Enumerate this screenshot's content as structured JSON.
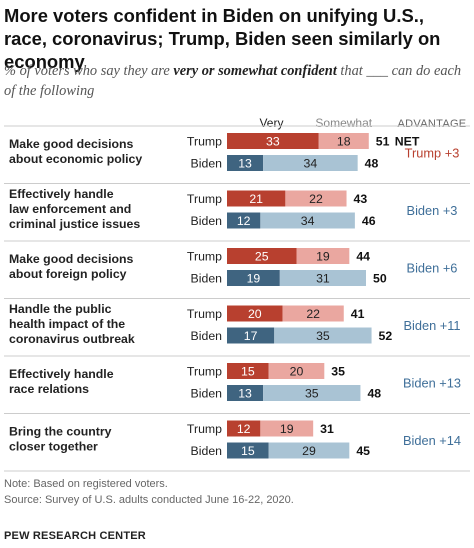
{
  "title": "More voters confident in Biden on unifying U.S., race, coronavirus; Trump, Biden seen similarly on economy",
  "subtitle": {
    "before": "% of voters who say they are ",
    "emphasis": "very or somewhat confident",
    "after": " that ___ can do each of the following"
  },
  "notes": {
    "note": "Note: Based on registered voters.",
    "source": "Source: Survey of U.S. adults conducted June 16-22, 2020.",
    "brand": "PEW RESEARCH CENTER"
  },
  "chart_data": {
    "type": "bar",
    "stacked": true,
    "orientation": "horizontal",
    "legend": [
      "Very",
      "Somewhat"
    ],
    "advantage_header": "ADVANTAGE",
    "net_label": "NET",
    "colors": {
      "trump_very": "#b8402f",
      "trump_somewhat": "#eaa7a0",
      "biden_very": "#3f6480",
      "biden_somewhat": "#a9c3d4",
      "trump_adv": "#b8402f",
      "biden_adv": "#3f6f99",
      "separator": "#cccccc"
    },
    "categories": [
      {
        "label": [
          "Make good decisions",
          "about economic policy"
        ],
        "rows": [
          {
            "name": "Trump",
            "very": 33,
            "somewhat": 18,
            "net": 51
          },
          {
            "name": "Biden",
            "very": 13,
            "somewhat": 34,
            "net": 48
          }
        ],
        "advantage": {
          "text": "Trump +3",
          "side": "trump"
        }
      },
      {
        "label": [
          "Effectively handle",
          "law enforcement and",
          "criminal justice issues"
        ],
        "rows": [
          {
            "name": "Trump",
            "very": 21,
            "somewhat": 22,
            "net": 43
          },
          {
            "name": "Biden",
            "very": 12,
            "somewhat": 34,
            "net": 46
          }
        ],
        "advantage": {
          "text": "Biden +3",
          "side": "biden"
        }
      },
      {
        "label": [
          "Make good decisions",
          "about foreign policy"
        ],
        "rows": [
          {
            "name": "Trump",
            "very": 25,
            "somewhat": 19,
            "net": 44
          },
          {
            "name": "Biden",
            "very": 19,
            "somewhat": 31,
            "net": 50
          }
        ],
        "advantage": {
          "text": "Biden +6",
          "side": "biden"
        }
      },
      {
        "label": [
          "Handle the public",
          "health impact of the",
          "coronavirus outbreak"
        ],
        "rows": [
          {
            "name": "Trump",
            "very": 20,
            "somewhat": 22,
            "net": 41
          },
          {
            "name": "Biden",
            "very": 17,
            "somewhat": 35,
            "net": 52
          }
        ],
        "advantage": {
          "text": "Biden +11",
          "side": "biden"
        }
      },
      {
        "label": [
          "Effectively handle",
          "race relations"
        ],
        "rows": [
          {
            "name": "Trump",
            "very": 15,
            "somewhat": 20,
            "net": 35
          },
          {
            "name": "Biden",
            "very": 13,
            "somewhat": 35,
            "net": 48
          }
        ],
        "advantage": {
          "text": "Biden +13",
          "side": "biden"
        }
      },
      {
        "label": [
          "Bring the country",
          "closer together"
        ],
        "rows": [
          {
            "name": "Trump",
            "very": 12,
            "somewhat": 19,
            "net": 31
          },
          {
            "name": "Biden",
            "very": 15,
            "somewhat": 29,
            "net": 45
          }
        ],
        "advantage": {
          "text": "Biden +14",
          "side": "biden"
        }
      }
    ]
  }
}
